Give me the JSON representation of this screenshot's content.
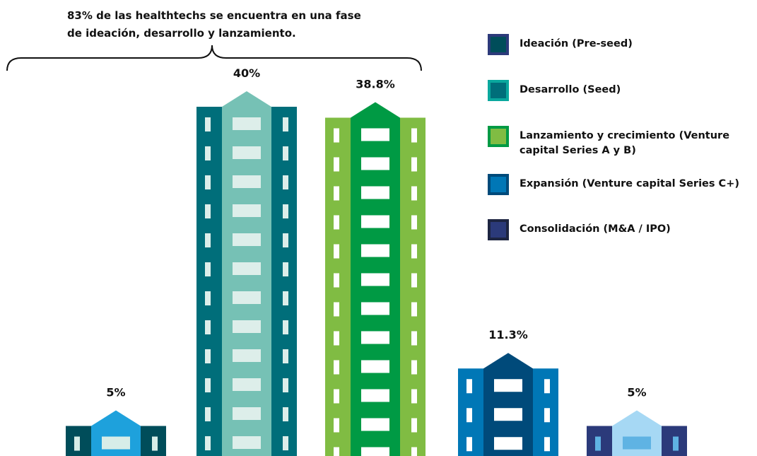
{
  "chart_data": {
    "type": "building-bar",
    "annotation": "83% de las healthtechs se encuentra en una fase de ideación, desarrollo y lanzamiento.",
    "categories": [
      "Ideación (Pre-seed)",
      "Desarrollo (Seed)",
      "Lanzamiento y crecimiento (Venture capital Series A y B)",
      "Expansión (Venture capital Series C+)",
      "Consolidación (M&A / IPO)"
    ],
    "values": [
      5,
      40,
      38.8,
      11.3,
      5
    ],
    "value_labels": [
      "5%",
      "40%",
      "38.8%",
      "11.3%",
      "5%"
    ],
    "colors": [
      {
        "wing": "#004d5a",
        "tower": "#1ea1dc",
        "window": "#d7ede8",
        "legend_border": "#2c3a7a"
      },
      {
        "wing": "#006e7a",
        "tower": "#76c1b5",
        "window": "#ddeeea",
        "legend_border": "#0aa89e"
      },
      {
        "wing": "#80bc43",
        "tower": "#009a44",
        "window": "#ffffff",
        "legend_border": "#009a44"
      },
      {
        "wing": "#0077b6",
        "tower": "#004a7a",
        "window": "#ffffff",
        "legend_border": "#004a7a"
      },
      {
        "wing": "#2b3a7a",
        "tower": "#a6d8f4",
        "window": "#5fb3e3",
        "legend_border": "#1d2541"
      }
    ]
  }
}
